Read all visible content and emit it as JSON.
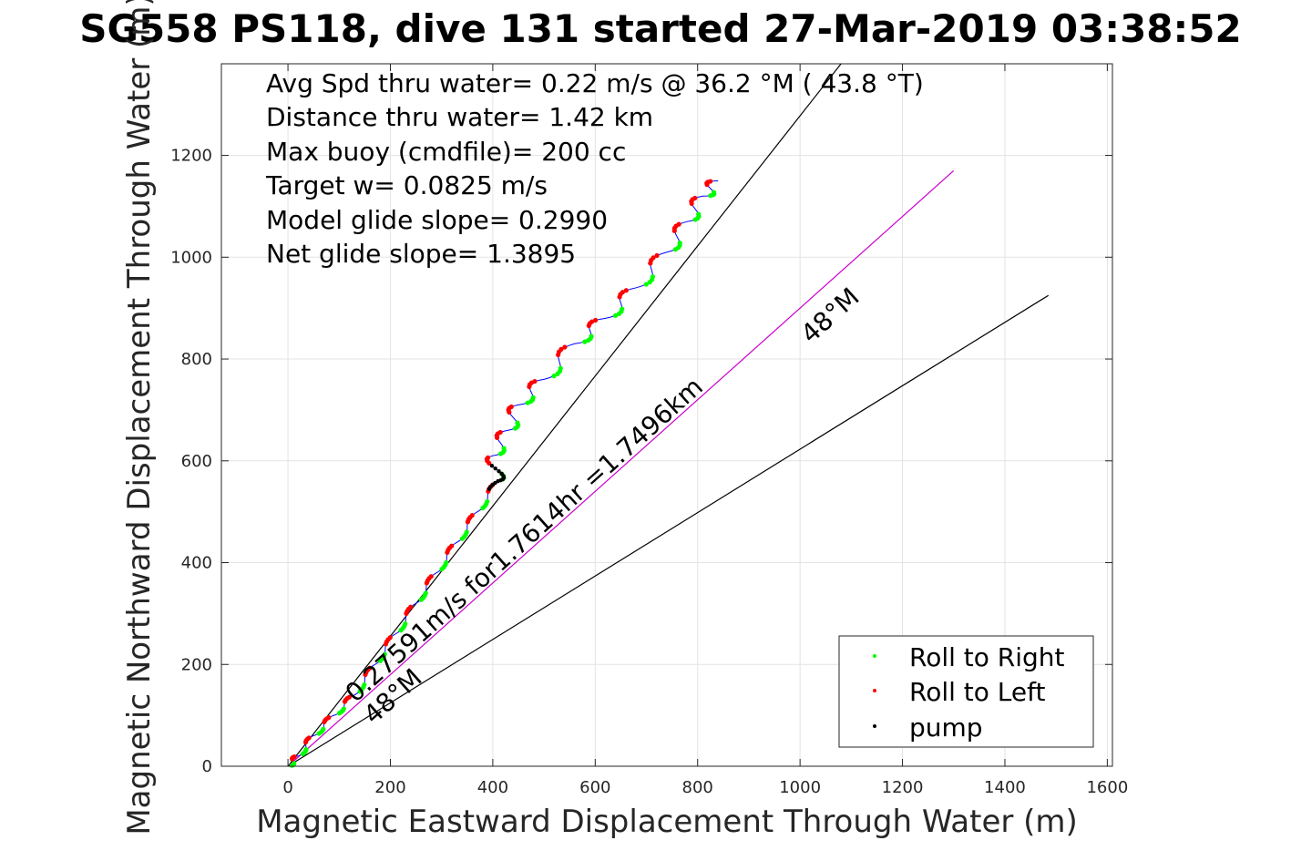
{
  "chart_data": {
    "type": "line",
    "title": "SG558 PS118, dive 131 started 27-Mar-2019 03:38:52",
    "xlabel": "Magnetic Eastward Displacement Through Water (m)",
    "ylabel": "Magnetic Northward Displacement Through Water (m)",
    "xlim": [
      -130,
      1610
    ],
    "ylim": [
      0,
      1380
    ],
    "xticks": [
      0,
      200,
      400,
      600,
      800,
      1000,
      1200,
      1400,
      1600
    ],
    "yticks": [
      0,
      200,
      400,
      600,
      800,
      1000,
      1200
    ],
    "grid": true,
    "stats": [
      "Avg Spd thru water=  0.22 m/s @  36.2 °M ( 43.8 °T)",
      "Distance thru water=  1.42 km",
      "Max buoy (cmdfile)= 200 cc",
      "Target w= 0.0825 m/s",
      "Model glide slope= 0.2990",
      "Net glide slope= 1.3895"
    ],
    "annotations": {
      "drift": "0.27591m/s for1.7614hr =1.7496km",
      "heading_lower": "48°M",
      "heading_upper": "48°M"
    },
    "lines": [
      {
        "name": "upper_bound",
        "color": "#000000",
        "x": [
          0,
          1080
        ],
        "y": [
          0,
          1380
        ]
      },
      {
        "name": "heading",
        "color": "#cc00cc",
        "x": [
          0,
          1300
        ],
        "y": [
          0,
          1170
        ]
      },
      {
        "name": "lower_bound",
        "color": "#000000",
        "x": [
          0,
          1485
        ],
        "y": [
          0,
          925
        ]
      }
    ],
    "track": {
      "color": "#0000ff",
      "x": [
        0,
        20,
        50,
        90,
        130,
        170,
        210,
        250,
        290,
        330,
        370,
        410,
        400,
        430,
        450,
        500,
        560,
        620,
        680,
        740,
        780,
        810,
        840
      ],
      "y": [
        0,
        20,
        60,
        100,
        140,
        200,
        260,
        320,
        380,
        440,
        500,
        560,
        610,
        660,
        710,
        760,
        830,
        880,
        940,
        1010,
        1070,
        1120,
        1150
      ]
    },
    "legend": {
      "position": "bottom-right",
      "entries": [
        {
          "label": "Roll to Right",
          "color": "#00ff00"
        },
        {
          "label": "Roll to Left",
          "color": "#ff0000"
        },
        {
          "label": "pump",
          "color": "#000000"
        }
      ]
    }
  }
}
